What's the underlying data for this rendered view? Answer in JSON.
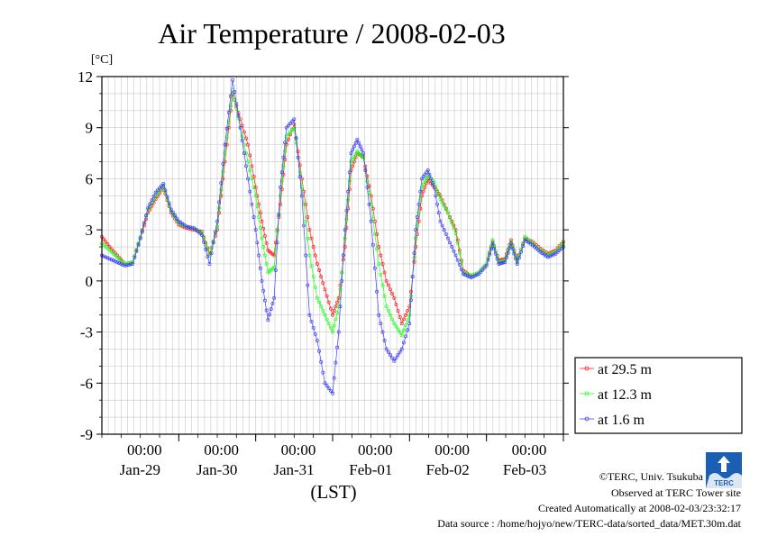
{
  "chart_data": {
    "type": "line",
    "title": "Air Temperature / 2008-02-03",
    "ylabel": "[°C]",
    "xlabel": "(LST)",
    "ylim": [
      -9,
      12
    ],
    "yticks": [
      "12",
      "9",
      "6",
      "3",
      "0",
      "-3",
      "-6",
      "-9"
    ],
    "xlim": [
      0,
      6
    ],
    "xticks": [
      {
        "x": 1,
        "time": "00:00",
        "date": "Jan-29"
      },
      {
        "x": 2,
        "time": "00:00",
        "date": "Jan-30"
      },
      {
        "x": 3,
        "time": "00:00",
        "date": "Jan-31"
      },
      {
        "x": 4,
        "time": "00:00",
        "date": "Feb-01"
      },
      {
        "x": 5,
        "time": "00:00",
        "date": "Feb-02"
      },
      {
        "x": 6,
        "time": "00:00",
        "date": "Feb-03"
      }
    ],
    "legend_position": "right-bottom",
    "grid": true,
    "series": [
      {
        "name": "at 29.5 m",
        "color": "#ff2020",
        "x": [
          0.0,
          0.1,
          0.2,
          0.3,
          0.4,
          0.5,
          0.6,
          0.7,
          0.8,
          0.9,
          1.0,
          1.1,
          1.2,
          1.3,
          1.4,
          1.5,
          1.6,
          1.7,
          1.8,
          1.9,
          2.0,
          2.08,
          2.16,
          2.24,
          2.32,
          2.4,
          2.5,
          2.6,
          2.7,
          2.8,
          2.9,
          3.0,
          3.08,
          3.16,
          3.24,
          3.32,
          3.4,
          3.5,
          3.6,
          3.7,
          3.8,
          3.9,
          4.0,
          4.08,
          4.16,
          4.24,
          4.32,
          4.4,
          4.5,
          4.6,
          4.7,
          4.8,
          4.9,
          5.0,
          5.08,
          5.16,
          5.24,
          5.32,
          5.4,
          5.5,
          5.6,
          5.7,
          5.8,
          5.9,
          6.0
        ],
        "y": [
          2.6,
          2.0,
          1.5,
          1.0,
          1.1,
          2.5,
          4.0,
          4.8,
          5.5,
          4.0,
          3.3,
          3.1,
          3.0,
          2.9,
          1.6,
          3.0,
          7.0,
          11.0,
          9.5,
          8.0,
          5.5,
          3.5,
          1.8,
          1.5,
          4.5,
          8.0,
          9.2,
          6.0,
          3.0,
          1.0,
          -0.5,
          -2.0,
          -1.0,
          2.0,
          6.5,
          7.5,
          7.3,
          5.0,
          2.0,
          0.0,
          -1.0,
          -2.5,
          -1.5,
          2.0,
          5.0,
          6.0,
          5.5,
          5.0,
          4.0,
          3.0,
          0.6,
          0.3,
          0.5,
          1.0,
          2.3,
          1.2,
          1.3,
          2.4,
          1.2,
          2.5,
          2.3,
          1.9,
          1.6,
          1.8,
          2.3
        ]
      },
      {
        "name": "at 12.3 m",
        "color": "#20ff20",
        "x": [
          0.0,
          0.1,
          0.2,
          0.3,
          0.4,
          0.5,
          0.6,
          0.7,
          0.8,
          0.9,
          1.0,
          1.1,
          1.2,
          1.3,
          1.4,
          1.5,
          1.6,
          1.7,
          1.8,
          1.9,
          2.0,
          2.08,
          2.16,
          2.24,
          2.32,
          2.4,
          2.5,
          2.6,
          2.7,
          2.8,
          2.9,
          3.0,
          3.08,
          3.16,
          3.24,
          3.32,
          3.4,
          3.5,
          3.6,
          3.7,
          3.8,
          3.9,
          4.0,
          4.08,
          4.16,
          4.24,
          4.32,
          4.4,
          4.5,
          4.6,
          4.7,
          4.8,
          4.9,
          5.0,
          5.08,
          5.16,
          5.24,
          5.32,
          5.4,
          5.5,
          5.6,
          5.7,
          5.8,
          5.9,
          6.0
        ],
        "y": [
          2.2,
          1.8,
          1.4,
          1.0,
          1.1,
          2.6,
          4.2,
          5.0,
          5.6,
          4.1,
          3.4,
          3.2,
          3.1,
          2.8,
          1.5,
          3.2,
          7.5,
          11.2,
          9.0,
          7.0,
          5.0,
          2.5,
          0.5,
          0.8,
          5.0,
          8.5,
          9.0,
          5.5,
          1.5,
          -1.0,
          -2.0,
          -3.0,
          -1.5,
          2.5,
          7.0,
          7.6,
          7.2,
          4.5,
          1.0,
          -1.5,
          -2.5,
          -3.2,
          -2.0,
          2.5,
          5.5,
          6.2,
          5.8,
          4.8,
          4.0,
          2.8,
          0.5,
          0.3,
          0.5,
          1.0,
          2.4,
          1.1,
          1.2,
          2.3,
          1.1,
          2.6,
          2.2,
          1.8,
          1.5,
          1.7,
          2.2
        ]
      },
      {
        "name": "at 1.6 m",
        "color": "#4040ff",
        "x": [
          0.0,
          0.1,
          0.2,
          0.3,
          0.4,
          0.5,
          0.6,
          0.7,
          0.8,
          0.9,
          1.0,
          1.1,
          1.2,
          1.3,
          1.4,
          1.5,
          1.6,
          1.7,
          1.8,
          1.9,
          2.0,
          2.08,
          2.16,
          2.24,
          2.32,
          2.4,
          2.5,
          2.6,
          2.7,
          2.8,
          2.9,
          3.0,
          3.08,
          3.16,
          3.24,
          3.32,
          3.4,
          3.5,
          3.6,
          3.7,
          3.8,
          3.9,
          4.0,
          4.08,
          4.16,
          4.24,
          4.32,
          4.4,
          4.5,
          4.6,
          4.7,
          4.8,
          4.9,
          5.0,
          5.08,
          5.16,
          5.24,
          5.32,
          5.4,
          5.5,
          5.6,
          5.7,
          5.8,
          5.9,
          6.0
        ],
        "y": [
          1.5,
          1.3,
          1.1,
          0.9,
          1.0,
          2.5,
          4.3,
          5.2,
          5.7,
          4.2,
          3.5,
          3.2,
          3.1,
          2.7,
          1.0,
          3.5,
          8.0,
          11.8,
          9.0,
          6.0,
          3.0,
          0.0,
          -2.3,
          -1.0,
          5.5,
          9.0,
          9.5,
          5.0,
          -2.0,
          -3.5,
          -6.0,
          -6.6,
          -3.0,
          3.0,
          7.5,
          8.3,
          7.5,
          3.5,
          -2.0,
          -4.0,
          -4.7,
          -4.0,
          -2.5,
          3.0,
          6.0,
          6.5,
          5.5,
          3.5,
          2.5,
          1.5,
          0.4,
          0.2,
          0.4,
          0.9,
          2.2,
          1.0,
          1.1,
          2.2,
          1.0,
          2.4,
          2.1,
          1.7,
          1.4,
          1.6,
          2.0
        ]
      }
    ]
  },
  "footer": {
    "copyright": "©TERC, Univ. Tsukuba",
    "observed": "Observed at TERC Tower site",
    "created": "Created Automatically at 2008-02-03/23:32:17",
    "source": "Data source : /home/hojyo/new/TERC-data/sorted_data/MET.30m.dat",
    "logo_text": "TERC"
  }
}
